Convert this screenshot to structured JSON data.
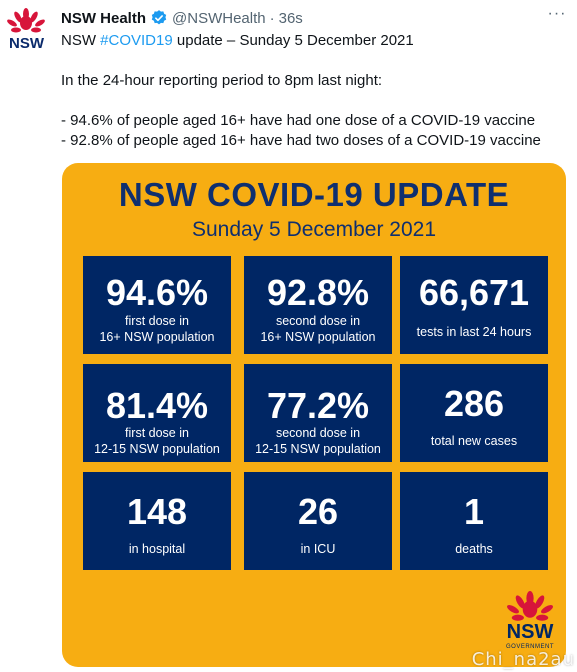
{
  "account": {
    "name": "NSW Health",
    "handle": "@NSWHealth",
    "separator": "·",
    "time": "36s",
    "avatar_text": "NSW"
  },
  "tweet": {
    "intro_prefix": "NSW ",
    "hashtag": "#COVID19",
    "intro_suffix": " update – Sunday 5 December 2021",
    "line2": "In the 24-hour reporting period to 8pm last night:",
    "bullet1": "- 94.6% of people aged 16+ have had one dose of a COVID-19 vaccine",
    "bullet2": "- 92.8% of people aged 16+ have had two doses of a COVID-19 vaccine"
  },
  "more_label": "···",
  "card": {
    "title": "NSW COVID-19 UPDATE",
    "subtitle": "Sunday 5 December 2021",
    "tiles": [
      {
        "value": "94.6%",
        "line1": "first dose in",
        "line2": "16+ NSW population"
      },
      {
        "value": "92.8%",
        "line1": "second dose in",
        "line2": "16+ NSW population"
      },
      {
        "value": "66,671",
        "line1": "tests in last 24 hours",
        "line2": ""
      },
      {
        "value": "81.4%",
        "line1": "first dose in",
        "line2": "12-15 NSW population"
      },
      {
        "value": "77.2%",
        "line1": "second dose in",
        "line2": "12-15 NSW population"
      },
      {
        "value": "286",
        "line1": "total new cases",
        "line2": ""
      },
      {
        "value": "148",
        "line1": "in hospital",
        "line2": ""
      },
      {
        "value": "26",
        "line1": "in ICU",
        "line2": ""
      },
      {
        "value": "1",
        "line1": "deaths",
        "line2": ""
      }
    ],
    "logo_text": "NSW",
    "logo_subtext": "GOVERNMENT"
  },
  "watermark": "Chi_na2au",
  "colors": {
    "card_background": "#f7ad12",
    "tile_background": "#002664",
    "hashtag": "#1d9bf0",
    "verified": "#1d9bf0",
    "waratah_red": "#d7153a"
  },
  "icons": [
    "waratah-icon",
    "verified-badge-icon",
    "more-options-icon"
  ]
}
